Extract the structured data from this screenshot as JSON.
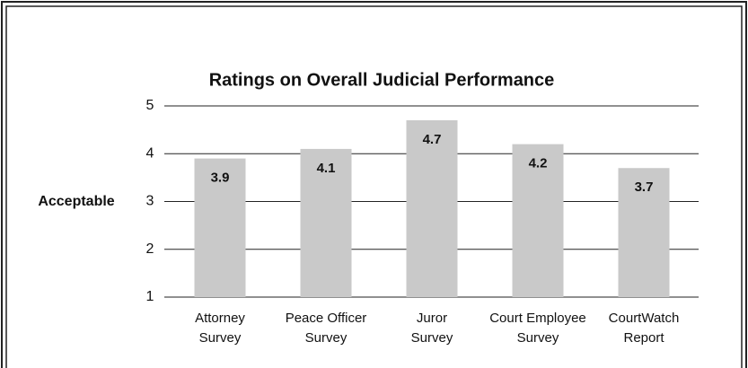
{
  "chart_data": {
    "type": "bar",
    "title": "Ratings on Overall Judicial Performance",
    "y_annotation": "Acceptable",
    "categories": [
      [
        "Attorney",
        "Survey"
      ],
      [
        "Peace Officer",
        "Survey"
      ],
      [
        "Juror",
        "Survey"
      ],
      [
        "Court Employee",
        "Survey"
      ],
      [
        "CourtWatch",
        "Report"
      ]
    ],
    "values": [
      3.9,
      4.1,
      4.7,
      4.2,
      3.7
    ],
    "color": "#c9c9c9",
    "ylim": [
      1,
      5
    ],
    "yticks": [
      1,
      2,
      3,
      4,
      5
    ],
    "grid": true
  }
}
